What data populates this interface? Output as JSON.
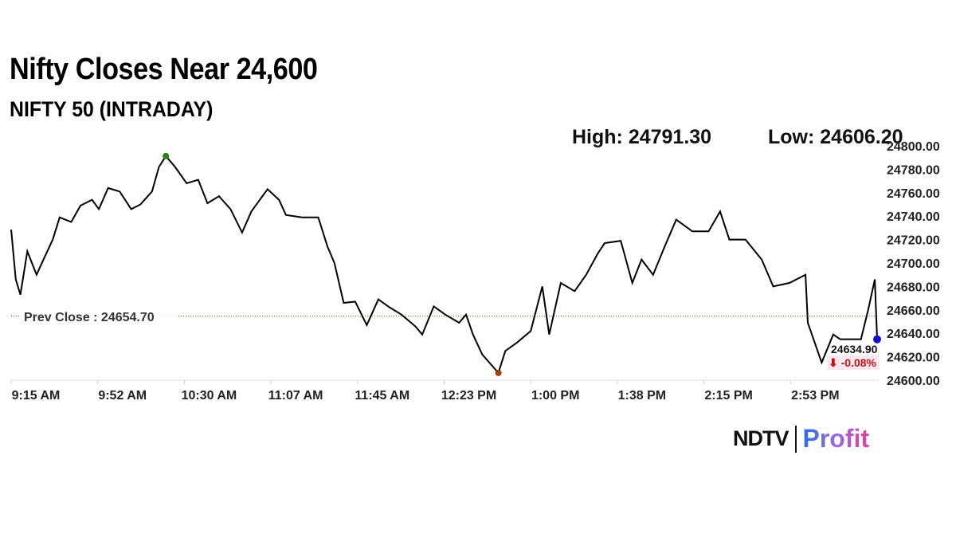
{
  "header": {
    "title": "Nifty Closes Near 24,600",
    "subtitle": "NIFTY 50 (INTRADAY)",
    "high": "High: 24791.30",
    "low": "Low: 24606.20"
  },
  "logo": {
    "brand": "NDTV",
    "product": "Profit"
  },
  "chart_data": {
    "type": "line",
    "title": "NIFTY 50 (INTRADAY)",
    "x_unit": "minutes since 9:15 AM",
    "xlim": [
      0,
      375
    ],
    "ylim": [
      24600,
      24800
    ],
    "y_ticks": [
      "24600.00",
      "24620.00",
      "24640.00",
      "24660.00",
      "24680.00",
      "24700.00",
      "24720.00",
      "24740.00",
      "24760.00",
      "24780.00",
      "24800.00"
    ],
    "x_ticks": [
      "9:15 AM",
      "9:52 AM",
      "10:30 AM",
      "11:07 AM",
      "11:45 AM",
      "12:23 PM",
      "1:00 PM",
      "1:38 PM",
      "2:15 PM",
      "2:53 PM"
    ],
    "prev_close": {
      "label": "Prev Close : 24654.70",
      "value": 24654.7
    },
    "last": {
      "value_label": "24634.90",
      "change_label": "⬇ -0.08%",
      "value": 24634.9
    },
    "colors": {
      "line": "#000000",
      "high_dot": "#2e7d1e",
      "low_dot": "#a0400a",
      "last_dot": "#1010cc",
      "change": "#cc1111",
      "prev_close": "#8b5a2b"
    },
    "series": [
      {
        "name": "NIFTY 50",
        "points": [
          [
            0,
            24728.6
          ],
          [
            2,
            24686
          ],
          [
            4,
            24673
          ],
          [
            7,
            24710
          ],
          [
            11,
            24690
          ],
          [
            14,
            24703
          ],
          [
            18,
            24720
          ],
          [
            21,
            24739
          ],
          [
            26,
            24735
          ],
          [
            30,
            24749
          ],
          [
            35,
            24754
          ],
          [
            38,
            24746
          ],
          [
            42,
            24764
          ],
          [
            47,
            24761
          ],
          [
            52,
            24746
          ],
          [
            56,
            24750
          ],
          [
            61,
            24761
          ],
          [
            64,
            24782
          ],
          [
            67,
            24791.3
          ],
          [
            71,
            24782
          ],
          [
            76,
            24768
          ],
          [
            81,
            24771
          ],
          [
            85,
            24751
          ],
          [
            90,
            24757
          ],
          [
            95,
            24746
          ],
          [
            100,
            24726
          ],
          [
            104,
            24744
          ],
          [
            111,
            24763
          ],
          [
            116,
            24754
          ],
          [
            119,
            24741
          ],
          [
            126,
            24739
          ],
          [
            133,
            24739
          ],
          [
            137,
            24714
          ],
          [
            140,
            24700
          ],
          [
            144,
            24666
          ],
          [
            149,
            24667
          ],
          [
            154,
            24647
          ],
          [
            159,
            24669
          ],
          [
            164,
            24662
          ],
          [
            169,
            24656
          ],
          [
            175,
            24646
          ],
          [
            178,
            24639
          ],
          [
            183,
            24663
          ],
          [
            188,
            24656
          ],
          [
            194,
            24649
          ],
          [
            197,
            24656
          ],
          [
            200,
            24639
          ],
          [
            204,
            24622
          ],
          [
            211,
            24606.2
          ],
          [
            214,
            24625
          ],
          [
            219,
            24632
          ],
          [
            225,
            24642
          ],
          [
            230,
            24680
          ],
          [
            233,
            24639
          ],
          [
            238,
            24683
          ],
          [
            244,
            24676
          ],
          [
            249,
            24690
          ],
          [
            254,
            24708
          ],
          [
            257,
            24717
          ],
          [
            264,
            24719
          ],
          [
            269,
            24683
          ],
          [
            273,
            24703
          ],
          [
            278,
            24690
          ],
          [
            283,
            24714
          ],
          [
            288,
            24737
          ],
          [
            295,
            24727
          ],
          [
            302,
            24727
          ],
          [
            307,
            24744
          ],
          [
            311,
            24720
          ],
          [
            318,
            24720
          ],
          [
            325,
            24703
          ],
          [
            330,
            24680
          ],
          [
            337,
            24683
          ],
          [
            344,
            24690
          ],
          [
            345,
            24649
          ],
          [
            351,
            24615
          ],
          [
            356,
            24639
          ],
          [
            359,
            24635
          ],
          [
            368,
            24635
          ],
          [
            371,
            24659
          ],
          [
            374,
            24686
          ],
          [
            375,
            24634.9
          ]
        ]
      }
    ]
  }
}
